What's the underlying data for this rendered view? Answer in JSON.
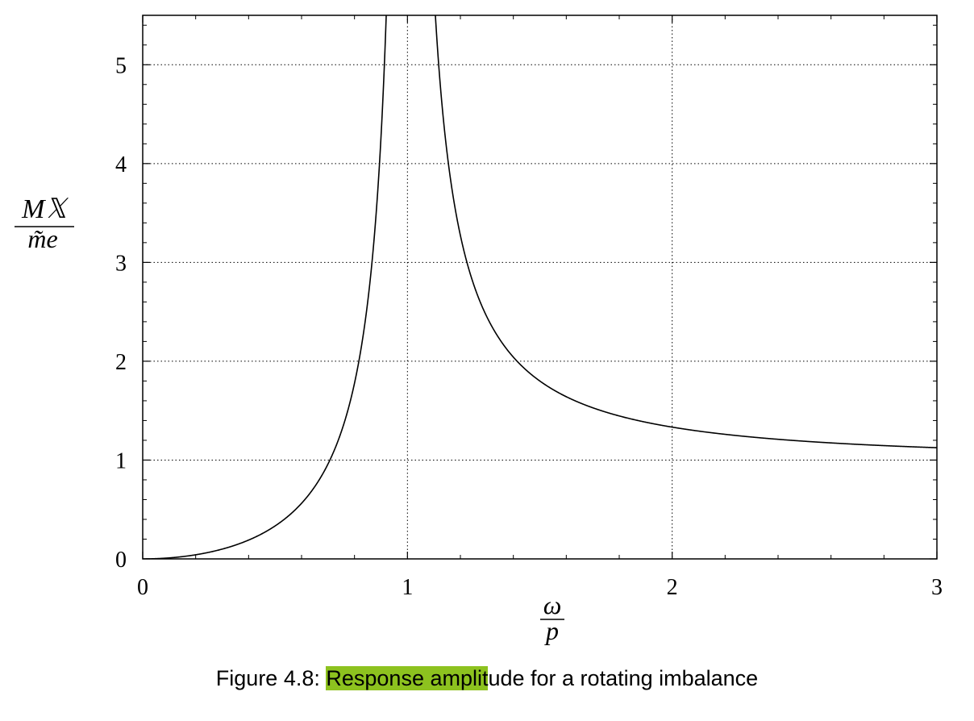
{
  "chart_data": {
    "type": "line",
    "xlabel": {
      "numerator": "ω",
      "denominator": "p"
    },
    "ylabel": {
      "numerator": "M𝕏",
      "denominator": "m̃e"
    },
    "xlim": [
      0,
      3
    ],
    "ylim": [
      0,
      5.5
    ],
    "x_ticks": [
      "0",
      "1",
      "2",
      "3"
    ],
    "y_ticks": [
      "0",
      "1",
      "2",
      "3",
      "4",
      "5"
    ],
    "grid": true,
    "grid_style": "dotted",
    "series": [
      {
        "formula": "r^2/|1-r^2|",
        "x": [
          0,
          0.1,
          0.2,
          0.3,
          0.4,
          0.5,
          0.6,
          0.7,
          0.75,
          0.8,
          0.85,
          0.9,
          0.92,
          1.1,
          1.12,
          1.15,
          1.2,
          1.3,
          1.4,
          1.5,
          1.6,
          1.8,
          2.0,
          2.2,
          2.4,
          2.6,
          2.8,
          3.0
        ],
        "y": [
          0,
          0.01,
          0.042,
          0.099,
          0.19,
          0.333,
          0.563,
          0.961,
          1.286,
          1.778,
          2.606,
          4.263,
          5.51,
          5.76,
          4.98,
          3.92,
          3.27,
          2.45,
          2.04,
          1.8,
          1.64,
          1.45,
          1.333,
          1.26,
          1.21,
          1.174,
          1.146,
          1.125
        ],
        "color": "#000000"
      }
    ]
  },
  "caption": {
    "prefix": "Figure 4.8: ",
    "highlighted": "Response amplit",
    "rest": "ude for a rotating imbalance",
    "highlight_color": "#8dc21f"
  }
}
